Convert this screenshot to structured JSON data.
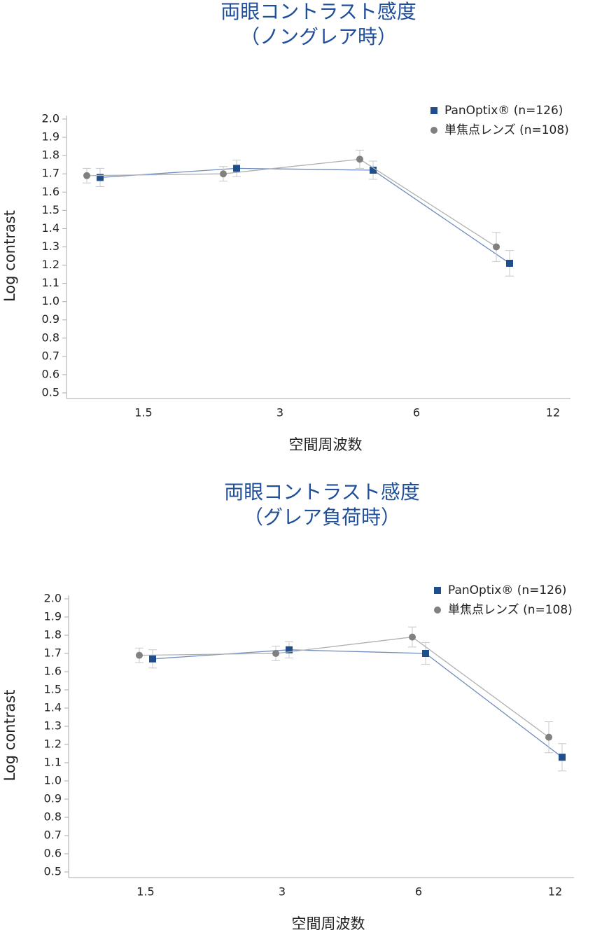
{
  "chart_data": [
    {
      "type": "line",
      "title": "両眼コントラスト感度",
      "subtitle": "（ノングレア時）",
      "x_label": "空間周波数",
      "y_label": "Log contrast",
      "categories": [
        "1.5",
        "3",
        "6",
        "12"
      ],
      "series": [
        {
          "name": "PanOptix® (n=126)",
          "color": "#1f4e8c",
          "line_color": "#6f8cbd",
          "marker": "square",
          "values": [
            1.68,
            1.73,
            1.72,
            1.21
          ],
          "errors": [
            0.05,
            0.045,
            0.05,
            0.07
          ]
        },
        {
          "name": "単焦点レンズ (n=108)",
          "color": "#808080",
          "line_color": "#b0b0b0",
          "marker": "circle",
          "values": [
            1.69,
            1.7,
            1.78,
            1.3
          ],
          "errors": [
            0.04,
            0.04,
            0.05,
            0.08
          ]
        }
      ],
      "ylim": [
        0.5,
        2.0
      ],
      "yticks": [
        0.5,
        0.6,
        0.7,
        0.8,
        0.9,
        {
          "value": 1.0,
          "label": "1.0"
        },
        1.1,
        1.2,
        1.3,
        1.4,
        1.5,
        1.6,
        1.7,
        1.8,
        1.9,
        {
          "value": 2.0,
          "label": "2.0"
        }
      ],
      "grid": false,
      "legend": "upper right"
    },
    {
      "type": "line",
      "title": "両眼コントラスト感度",
      "subtitle": "（グレア負荷時）",
      "x_label": "空間周波数",
      "y_label": "Log contrast",
      "categories": [
        "1.5",
        "3",
        "6",
        "12"
      ],
      "series": [
        {
          "name": "PanOptix® (n=126)",
          "color": "#1f4e8c",
          "line_color": "#6f8cbd",
          "marker": "square",
          "values": [
            1.67,
            1.72,
            1.7,
            1.13
          ],
          "errors": [
            0.05,
            0.045,
            0.06,
            0.075
          ]
        },
        {
          "name": "単焦点レンズ (n=108)",
          "color": "#808080",
          "line_color": "#b0b0b0",
          "marker": "circle",
          "values": [
            1.69,
            1.7,
            1.79,
            1.24
          ],
          "errors": [
            0.04,
            0.04,
            0.055,
            0.085
          ]
        }
      ],
      "ylim": [
        0.5,
        2.0
      ],
      "yticks": [
        0.5,
        0.6,
        0.7,
        0.8,
        0.9,
        {
          "value": 1.0,
          "label": "1.0"
        },
        1.1,
        1.2,
        1.3,
        1.4,
        1.5,
        1.6,
        1.7,
        1.8,
        1.9,
        {
          "value": 2.0,
          "label": "2.0"
        }
      ],
      "grid": false,
      "legend": "upper right"
    }
  ]
}
